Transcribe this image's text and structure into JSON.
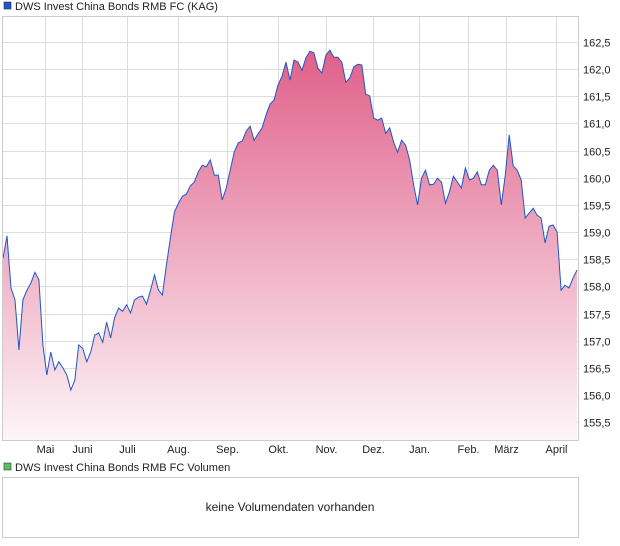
{
  "colors": {
    "line": "#1f56c8",
    "fill_top": "#e0608a",
    "fill_bottom": "#fdf5f8",
    "grid": "#dddddd",
    "price_legend": "#1f56c8",
    "volume_legend": "#5cc05c"
  },
  "chart_data": [
    {
      "type": "area",
      "title": "DWS Invest China Bonds RMB FC (KAG)",
      "legend_placement": "top-left",
      "grid": true,
      "x_unit": "trading-day index",
      "ylim": [
        155.17,
        162.98
      ],
      "y_ticks": [
        155.5,
        156.0,
        156.5,
        157.0,
        157.5,
        158.0,
        158.5,
        159.0,
        159.5,
        160.0,
        160.5,
        161.0,
        161.5,
        162.0,
        162.5
      ],
      "y_tick_labels": [
        "155,5",
        "156,0",
        "156,5",
        "157,0",
        "157,5",
        "158,0",
        "158,5",
        "159,0",
        "159,5",
        "160,0",
        "160,5",
        "161,0",
        "161,5",
        "162,0",
        "162,5"
      ],
      "x_ticks": [
        {
          "label": "Mai",
          "index": 10.5
        },
        {
          "label": "Juni",
          "index": 19.75
        },
        {
          "label": "Juli",
          "index": 31
        },
        {
          "label": "Aug.",
          "index": 44
        },
        {
          "label": "Sep.",
          "index": 56.25
        },
        {
          "label": "Okt.",
          "index": 69
        },
        {
          "label": "Nov.",
          "index": 81
        },
        {
          "label": "Dez.",
          "index": 92.75
        },
        {
          "label": "Jan.",
          "index": 104.25
        },
        {
          "label": "Feb.",
          "index": 116.75
        },
        {
          "label": "März",
          "index": 126.25
        },
        {
          "label": "April",
          "index": 138.75
        }
      ],
      "values": [
        158.52,
        158.93,
        157.97,
        157.75,
        156.83,
        157.75,
        157.93,
        158.06,
        158.26,
        158.12,
        156.92,
        156.37,
        156.79,
        156.46,
        156.61,
        156.5,
        156.37,
        156.09,
        156.27,
        156.92,
        156.86,
        156.61,
        156.79,
        157.1,
        157.14,
        156.97,
        157.34,
        157.05,
        157.42,
        157.6,
        157.54,
        157.66,
        157.51,
        157.75,
        157.8,
        157.82,
        157.67,
        157.93,
        158.21,
        157.93,
        157.84,
        158.39,
        158.89,
        159.37,
        159.53,
        159.66,
        159.7,
        159.85,
        159.92,
        160.11,
        160.23,
        160.2,
        160.33,
        160.05,
        160.05,
        159.59,
        159.81,
        160.14,
        160.47,
        160.64,
        160.68,
        160.86,
        160.95,
        160.69,
        160.81,
        160.92,
        161.16,
        161.36,
        161.43,
        161.71,
        161.87,
        162.13,
        161.8,
        162.17,
        162.13,
        161.98,
        162.21,
        162.33,
        162.3,
        162.02,
        161.93,
        162.26,
        162.35,
        162.22,
        162.22,
        162.13,
        161.76,
        161.84,
        162.04,
        162.09,
        162.08,
        161.54,
        161.51,
        161.1,
        161.06,
        161.1,
        160.82,
        160.92,
        160.66,
        160.47,
        160.69,
        160.6,
        160.33,
        159.87,
        159.5,
        159.99,
        160.14,
        159.87,
        159.88,
        159.99,
        159.92,
        159.53,
        159.74,
        160.03,
        159.92,
        159.81,
        160.18,
        159.96,
        159.99,
        160.11,
        159.87,
        159.87,
        160.14,
        160.23,
        160.14,
        159.5,
        160.05,
        160.79,
        160.22,
        160.14,
        159.96,
        159.26,
        159.35,
        159.44,
        159.31,
        159.26,
        158.8,
        159.11,
        159.13,
        159.0,
        157.93,
        158.02,
        157.97,
        158.15,
        158.3
      ]
    },
    {
      "type": "bar",
      "title": "DWS Invest China Bonds RMB FC Volumen",
      "legend_placement": "top-left",
      "values": [],
      "empty_message": "keine Volumendaten vorhanden"
    }
  ]
}
